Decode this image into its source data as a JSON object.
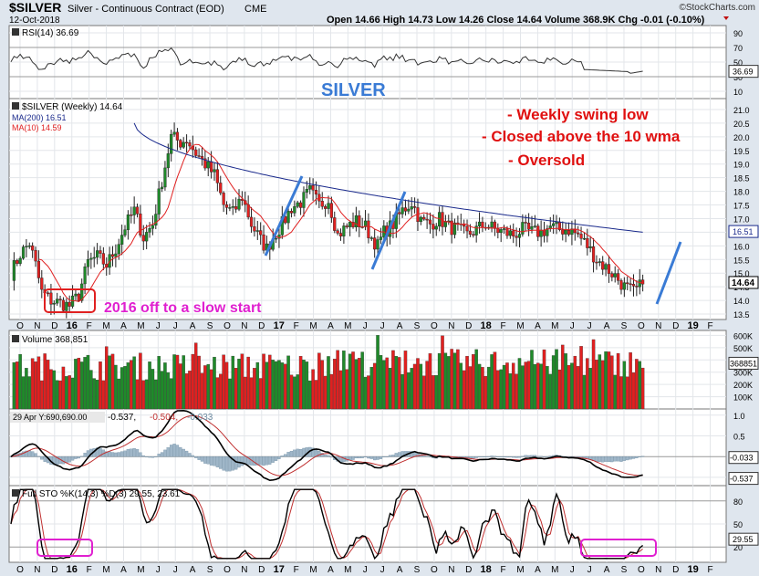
{
  "header": {
    "symbol": "$SILVER",
    "description": "Silver - Continuous Contract (EOD)",
    "exchange": "CME",
    "date": "12-Oct-2018",
    "brand": "©StockCharts.com",
    "ohlc_text": "Open 14.66  High 14.73  Low 14.26  Close 14.64  Volume 368.9K  Chg -0.01 (-0.10%)"
  },
  "annotations": {
    "silver_title": "SILVER",
    "note1": "- Weekly swing low",
    "note2": "- Closed above the 10 wma",
    "note3": "- Oversold",
    "note_2016": "2016 off to a slow start"
  },
  "chart_data": [
    {
      "type": "line",
      "panel": "RSI",
      "label": "RSI(14) 36.69",
      "y_ticks": [
        10,
        30,
        50,
        70,
        90
      ],
      "last_value": 36.69,
      "ylim": [
        0,
        100
      ]
    },
    {
      "type": "candlestick",
      "panel": "Price",
      "label": "$SILVER (Weekly) 14.64",
      "legend": [
        "MA(200) 16.51",
        "MA(10) 14.59"
      ],
      "x_ticks": [
        "O",
        "N",
        "D",
        "16",
        "F",
        "M",
        "A",
        "M",
        "J",
        "J",
        "A",
        "S",
        "O",
        "N",
        "D",
        "17",
        "F",
        "M",
        "A",
        "M",
        "J",
        "J",
        "A",
        "S",
        "O",
        "N",
        "D",
        "18",
        "F",
        "M",
        "A",
        "M",
        "J",
        "J",
        "A",
        "S",
        "O",
        "N",
        "D",
        "19",
        "F"
      ],
      "y_ticks": [
        13.5,
        14.0,
        14.5,
        15.0,
        15.5,
        16.0,
        16.5,
        17.0,
        17.5,
        18.0,
        18.5,
        19.0,
        19.5,
        20.0,
        20.5,
        21.0
      ],
      "ylim": [
        13.3,
        21.4
      ],
      "last_close": 14.64,
      "ma200_last": 16.51,
      "close_anchors": [
        [
          0,
          15.0
        ],
        [
          3,
          15.7
        ],
        [
          6,
          16.1
        ],
        [
          8,
          15.3
        ],
        [
          10,
          14.3
        ],
        [
          13,
          14.0
        ],
        [
          16,
          13.9
        ],
        [
          19,
          13.8
        ],
        [
          22,
          14.2
        ],
        [
          25,
          15.4
        ],
        [
          28,
          15.6
        ],
        [
          31,
          15.3
        ],
        [
          34,
          15.9
        ],
        [
          37,
          16.7
        ],
        [
          40,
          17.3
        ],
        [
          43,
          16.3
        ],
        [
          46,
          16.8
        ],
        [
          49,
          18.4
        ],
        [
          52,
          20.0
        ],
        [
          55,
          19.8
        ],
        [
          57,
          19.9
        ],
        [
          60,
          19.4
        ],
        [
          63,
          19.0
        ],
        [
          66,
          18.6
        ],
        [
          69,
          17.5
        ],
        [
          72,
          17.2
        ],
        [
          75,
          17.8
        ],
        [
          78,
          16.8
        ],
        [
          81,
          16.2
        ],
        [
          83,
          15.9
        ],
        [
          85,
          16.3
        ],
        [
          88,
          16.8
        ],
        [
          91,
          17.4
        ],
        [
          94,
          17.6
        ],
        [
          97,
          18.0
        ],
        [
          100,
          17.5
        ],
        [
          103,
          17.7
        ],
        [
          106,
          16.4
        ],
        [
          109,
          16.7
        ],
        [
          112,
          16.9
        ],
        [
          115,
          16.7
        ],
        [
          117,
          16.3
        ],
        [
          119,
          16.0
        ],
        [
          121,
          16.5
        ],
        [
          124,
          16.8
        ],
        [
          127,
          17.3
        ],
        [
          130,
          17.6
        ],
        [
          133,
          16.9
        ],
        [
          136,
          16.8
        ],
        [
          139,
          17.0
        ],
        [
          142,
          16.7
        ],
        [
          145,
          16.6
        ],
        [
          148,
          16.4
        ],
        [
          151,
          16.6
        ],
        [
          154,
          16.8
        ],
        [
          157,
          16.6
        ],
        [
          160,
          16.5
        ],
        [
          163,
          16.4
        ],
        [
          166,
          16.6
        ],
        [
          169,
          16.5
        ],
        [
          172,
          16.5
        ],
        [
          175,
          16.7
        ],
        [
          178,
          16.6
        ],
        [
          181,
          16.6
        ],
        [
          184,
          16.4
        ],
        [
          187,
          16.0
        ],
        [
          190,
          15.5
        ],
        [
          193,
          15.2
        ],
        [
          196,
          14.9
        ],
        [
          199,
          14.5
        ],
        [
          202,
          14.3
        ],
        [
          205,
          14.6
        ]
      ]
    },
    {
      "type": "bar",
      "panel": "Volume",
      "label": "Volume 368,851",
      "y_ticks": [
        "100K",
        "200K",
        "300K",
        "400K",
        "500K",
        "600K"
      ],
      "last_value_label": "368851",
      "ylim": [
        0,
        640000
      ]
    },
    {
      "type": "line",
      "panel": "MACD",
      "label": "29 Apr Y:690,690.00  -0.537, -0.504, -0.033",
      "y_ticks": [
        "1.0",
        "0.5",
        "-0.5"
      ],
      "last_values": [
        "-0.033",
        "-0.537"
      ],
      "ylim": [
        -0.7,
        1.15
      ]
    },
    {
      "type": "line",
      "panel": "Stochastic",
      "label": "Full STO %K(14,3) %D(3) 29.55, 23.61",
      "y_ticks": [
        20,
        50,
        80
      ],
      "last_value": 29.55,
      "ylim": [
        0,
        100
      ]
    }
  ],
  "y_labels": {
    "rsi": [
      "90",
      "70",
      "50",
      "30",
      "10"
    ],
    "rsi_last": "36.69",
    "price": [
      "21.0",
      "20.5",
      "20.0",
      "19.5",
      "19.0",
      "18.5",
      "18.0",
      "17.5",
      "17.0",
      "16.5",
      "16.0",
      "15.5",
      "15.0",
      "14.5",
      "14.0",
      "13.5"
    ],
    "price_ma": "16.51",
    "price_last": "14.64",
    "volume": [
      "600K",
      "500K",
      "400K",
      "300K",
      "200K",
      "100K"
    ],
    "volume_last": "368851",
    "macd": [
      "1.0",
      "0.5",
      "-0.5"
    ],
    "macd_last1": "-0.033",
    "macd_last2": "-0.537",
    "sto": [
      "80",
      "50",
      "20"
    ],
    "sto_last": "29.55"
  },
  "panel_labels": {
    "rsi": "RSI(14) 36.69",
    "price_title": "$SILVER (Weekly) 14.64",
    "ma200": "MA(200) 16.51",
    "ma10": "MA(10) 14.59",
    "volume": "Volume 368,851",
    "macd_a": "29 Apr Y:690,690.00",
    "macd_b": "-0.537,",
    "macd_c": "-0.504,",
    "macd_d": "-0.033",
    "sto": "Full STO %K(14,3) %D(3) 29.55, 23.61"
  },
  "colors": {
    "up": "#1f8a2a",
    "down": "#e02020",
    "ma200": "#1a2a8c",
    "ma10": "#e02020",
    "annotation_blue": "#3a7bd5",
    "annotation_red": "#e01010",
    "annotation_magenta": "#e020d0",
    "trend_blue": "#3a7bd5"
  }
}
